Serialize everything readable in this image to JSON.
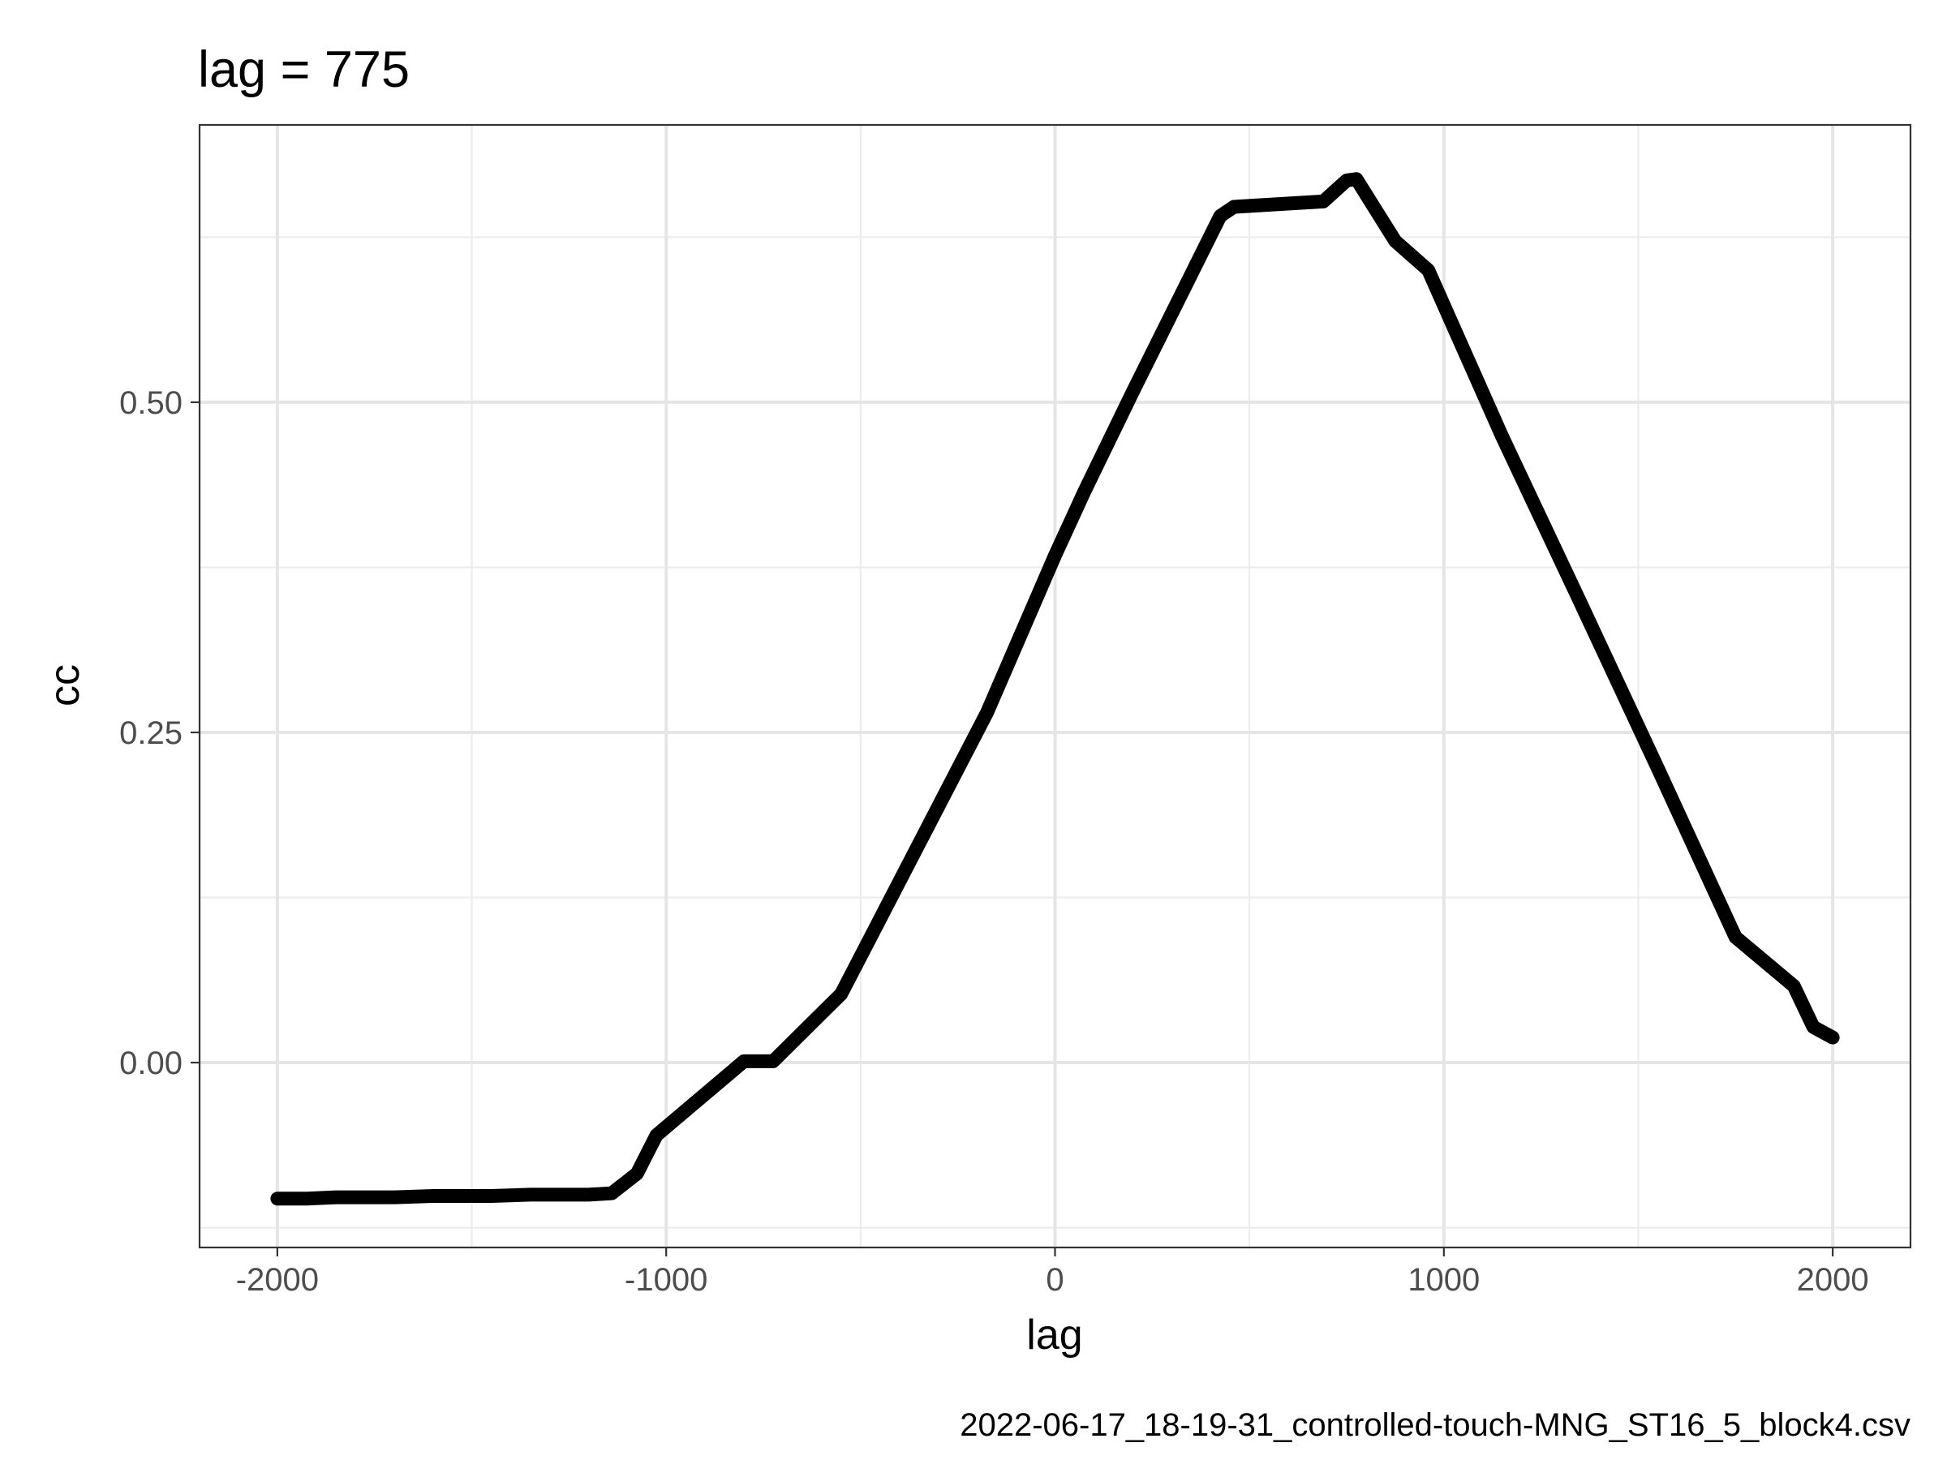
{
  "chart_data": {
    "type": "line",
    "title": "lag = 775",
    "xlabel": "lag",
    "ylabel": "cc",
    "caption": "2022-06-17_18-19-31_controlled-touch-MNG_ST16_5_block4.csv",
    "xlim": [
      -2200,
      2200
    ],
    "ylim": [
      -0.14,
      0.71
    ],
    "x_ticks": [
      -2000,
      -1000,
      0,
      1000,
      2000
    ],
    "x_tick_labels": [
      "-2000",
      "-1000",
      "0",
      "1000",
      "2000"
    ],
    "y_ticks": [
      0,
      0.25,
      0.5
    ],
    "y_tick_labels": [
      "0.00",
      "0.25",
      "0.50"
    ],
    "x_minor": [
      -1500,
      -500,
      500,
      1500
    ],
    "y_minor": [
      -0.125,
      0.125,
      0.375,
      0.625
    ],
    "grid": true,
    "line_color": "#000000",
    "series": [
      {
        "x": [
          -2000,
          -1925,
          -1850,
          -1700,
          -1600,
          -1450,
          -1350,
          -1200,
          -1140,
          -1075,
          -1025,
          -800,
          -725,
          -550,
          -175,
          0,
          75,
          200,
          425,
          460,
          690,
          750,
          775,
          875,
          960,
          1150,
          1350,
          1550,
          1750,
          1900,
          1950,
          2000
        ],
        "y": [
          -0.103,
          -0.103,
          -0.102,
          -0.102,
          -0.101,
          -0.101,
          -0.1,
          -0.1,
          -0.099,
          -0.084,
          -0.055,
          0.001,
          0.001,
          0.052,
          0.265,
          0.384,
          0.432,
          0.508,
          0.641,
          0.648,
          0.652,
          0.668,
          0.669,
          0.622,
          0.6,
          0.474,
          0.349,
          0.223,
          0.095,
          0.058,
          0.027,
          0.019
        ]
      }
    ]
  }
}
